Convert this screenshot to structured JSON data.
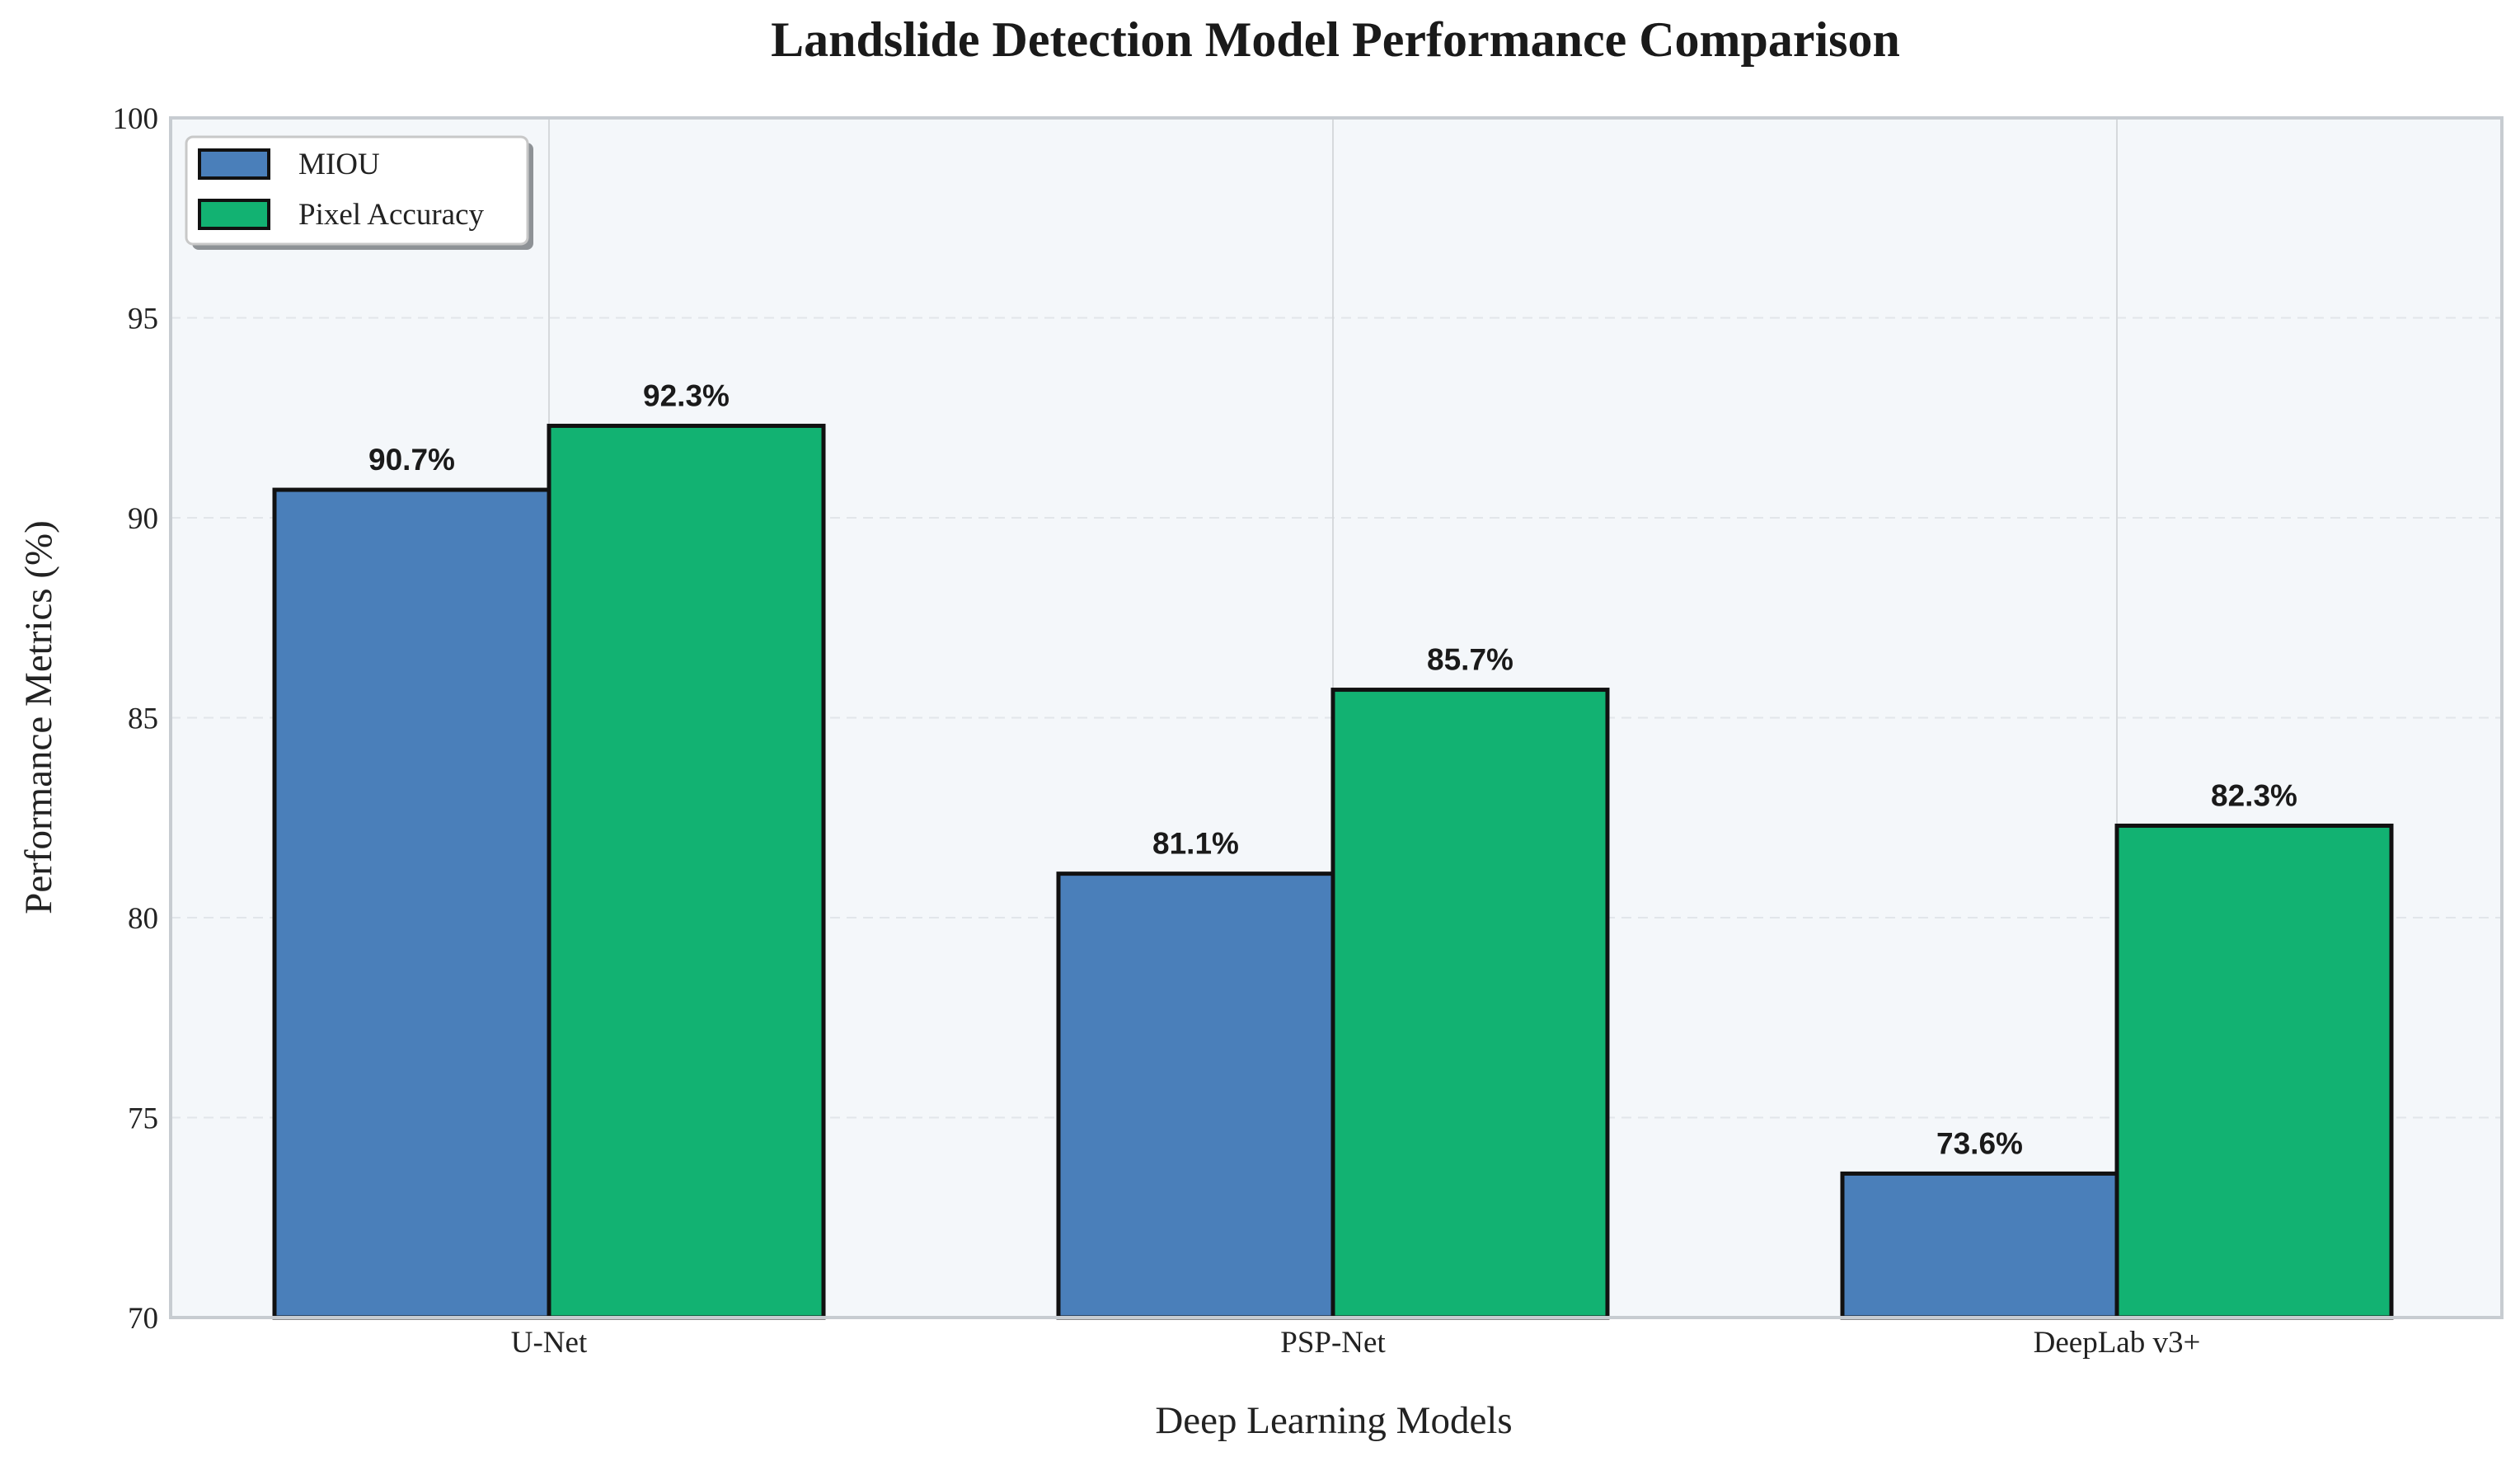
{
  "chart_data": {
    "type": "bar",
    "title": "Landslide Detection Model Performance Comparison",
    "xlabel": "Deep Learning Models",
    "ylabel": "Performance Metrics (%)",
    "categories": [
      "U-Net",
      "PSP-Net",
      "DeepLab v3+"
    ],
    "series": [
      {
        "name": "MIOU",
        "color": "#4a7fba",
        "values": [
          90.7,
          81.1,
          73.6
        ],
        "labels": [
          "90.7%",
          "81.1%",
          "73.6%"
        ]
      },
      {
        "name": "Pixel Accuracy",
        "color": "#12b272",
        "values": [
          92.3,
          85.7,
          82.3
        ],
        "labels": [
          "92.3%",
          "85.7%",
          "82.3%"
        ]
      }
    ],
    "ylim": [
      70,
      100
    ],
    "yticks": [
      "70",
      "75",
      "80",
      "85",
      "90",
      "95",
      "100"
    ],
    "grid": true,
    "legend_position": "top-left"
  },
  "colors": {
    "plot_background": "#f4f7fa",
    "grid_line": "#e2e6ea",
    "axis_frame": "#c7ccd1",
    "bar_edge": "#111111"
  }
}
